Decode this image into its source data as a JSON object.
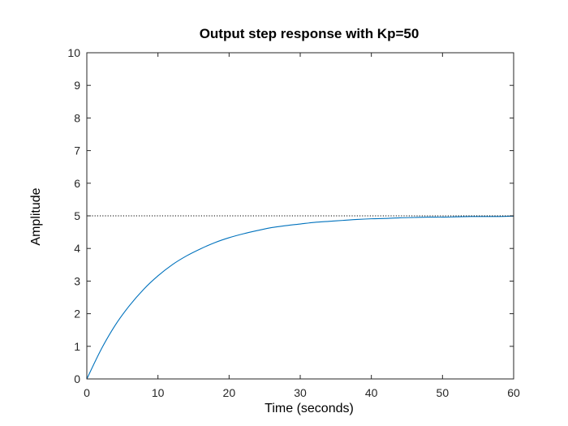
{
  "chart_data": {
    "type": "line",
    "title": "Output step response with Kp=50",
    "xlabel": "Time (seconds)",
    "ylabel": "Amplitude",
    "xlim": [
      0,
      60
    ],
    "ylim": [
      0,
      10
    ],
    "xticks": [
      "0",
      "10",
      "20",
      "30",
      "40",
      "50",
      "60"
    ],
    "yticks": [
      "0",
      "1",
      "2",
      "3",
      "4",
      "5",
      "6",
      "7",
      "8",
      "9",
      "10"
    ],
    "grid": false,
    "legend": "none",
    "series": [
      {
        "color": "#0072bd",
        "style": "solid",
        "x": [
          0,
          2,
          4,
          6,
          8,
          10,
          12,
          14,
          16,
          18,
          20,
          22,
          24,
          26,
          28,
          30,
          32,
          34,
          36,
          38,
          40,
          42,
          44,
          46,
          48,
          50,
          52,
          54,
          56,
          58,
          60
        ],
        "y": [
          0,
          0.9,
          1.65,
          2.25,
          2.75,
          3.16,
          3.5,
          3.77,
          3.99,
          4.18,
          4.33,
          4.45,
          4.55,
          4.64,
          4.7,
          4.75,
          4.8,
          4.83,
          4.86,
          4.89,
          4.91,
          4.92,
          4.94,
          4.95,
          4.96,
          4.96,
          4.97,
          4.98,
          4.98,
          4.98,
          4.99
        ]
      },
      {
        "color": "#000000",
        "style": "dotted",
        "x": [
          0,
          60
        ],
        "y": [
          5,
          5
        ]
      }
    ]
  }
}
